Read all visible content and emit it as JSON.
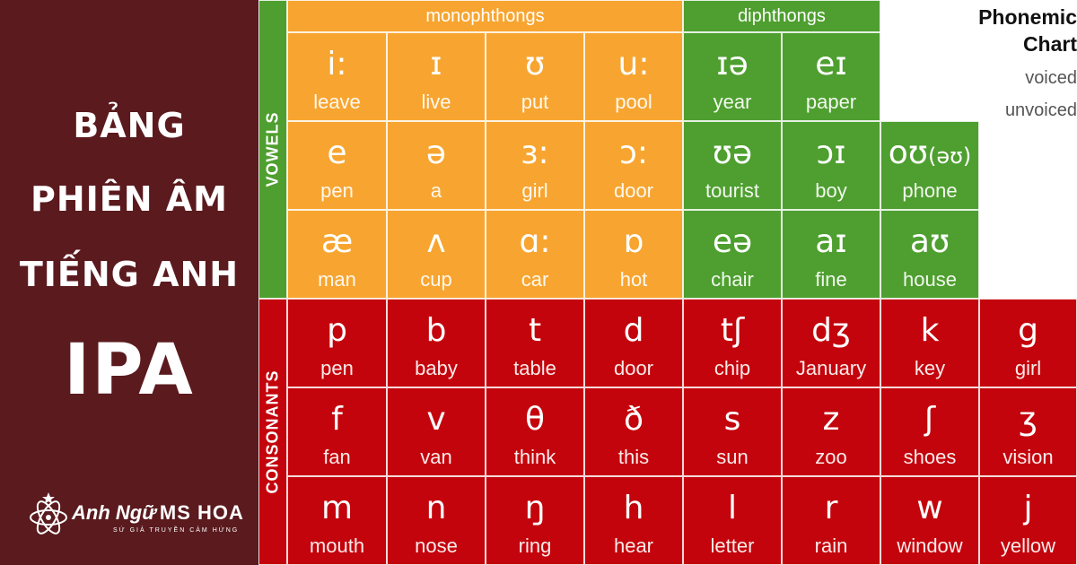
{
  "banner": {
    "title_lines": [
      "BẢNG",
      "PHIÊN ÂM",
      "TIẾNG ANH",
      "IPA"
    ],
    "logo": {
      "name": "Anh Ngữ",
      "brand": "MS HOA",
      "slogan": "SỨ GIẢ TRUYỀN CẢM HỨNG",
      "icon": "atom-star-icon"
    }
  },
  "chart": {
    "headers": {
      "monophthongs": "monophthongs",
      "diphthongs": "diphthongs"
    },
    "side_labels": {
      "vowels": "VOWELS",
      "consonants": "CONSONANTS"
    },
    "legend": {
      "title_line1": "Phonemic",
      "title_line2": "Chart",
      "voiced": "voiced",
      "unvoiced": "unvoiced"
    },
    "colors": {
      "monophthong": "#f7a530",
      "diphthong": "#4e9f2f",
      "consonant": "#c4040c",
      "banner": "#5a1a1e"
    },
    "monophthongs": [
      [
        {
          "symbol": "i:",
          "word": "leave"
        },
        {
          "symbol": "ɪ",
          "word": "live"
        },
        {
          "symbol": "ʊ",
          "word": "put"
        },
        {
          "symbol": "u:",
          "word": "pool"
        }
      ],
      [
        {
          "symbol": "e",
          "word": "pen"
        },
        {
          "symbol": "ə",
          "word": "a"
        },
        {
          "symbol": "ɜ:",
          "word": "girl"
        },
        {
          "symbol": "ɔ:",
          "word": "door"
        }
      ],
      [
        {
          "symbol": "æ",
          "word": "man"
        },
        {
          "symbol": "ʌ",
          "word": "cup"
        },
        {
          "symbol": "ɑ:",
          "word": "car"
        },
        {
          "symbol": "ɒ",
          "word": "hot"
        }
      ]
    ],
    "diphthongs": [
      [
        {
          "symbol": "ɪə",
          "word": "year"
        },
        {
          "symbol": "eɪ",
          "word": "paper"
        }
      ],
      [
        {
          "symbol": "ʊə",
          "word": "tourist"
        },
        {
          "symbol": "ɔɪ",
          "word": "boy"
        },
        {
          "symbol": "oʊ",
          "symbol_small": "(əʊ)",
          "word": "phone"
        }
      ],
      [
        {
          "symbol": "eə",
          "word": "chair"
        },
        {
          "symbol": "aɪ",
          "word": "fine"
        },
        {
          "symbol": "aʊ",
          "word": "house"
        }
      ]
    ],
    "consonants": [
      [
        {
          "symbol": "p",
          "word": "pen"
        },
        {
          "symbol": "b",
          "word": "baby"
        },
        {
          "symbol": "t",
          "word": "table"
        },
        {
          "symbol": "d",
          "word": "door"
        },
        {
          "symbol": "tʃ",
          "word": "chip"
        },
        {
          "symbol": "dʒ",
          "word": "January"
        },
        {
          "symbol": "k",
          "word": "key"
        },
        {
          "symbol": "g",
          "word": "girl"
        }
      ],
      [
        {
          "symbol": "f",
          "word": "fan"
        },
        {
          "symbol": "v",
          "word": "van"
        },
        {
          "symbol": "θ",
          "word": "think"
        },
        {
          "symbol": "ð",
          "word": "this"
        },
        {
          "symbol": "s",
          "word": "sun"
        },
        {
          "symbol": "z",
          "word": "zoo"
        },
        {
          "symbol": "ʃ",
          "word": "shoes"
        },
        {
          "symbol": "ʒ",
          "word": "vision"
        }
      ],
      [
        {
          "symbol": "m",
          "word": "mouth"
        },
        {
          "symbol": "n",
          "word": "nose"
        },
        {
          "symbol": "ŋ",
          "word": "ring"
        },
        {
          "symbol": "h",
          "word": "hear"
        },
        {
          "symbol": "l",
          "word": "letter"
        },
        {
          "symbol": "r",
          "word": "rain"
        },
        {
          "symbol": "w",
          "word": "window"
        },
        {
          "symbol": "j",
          "word": "yellow"
        }
      ]
    ]
  }
}
